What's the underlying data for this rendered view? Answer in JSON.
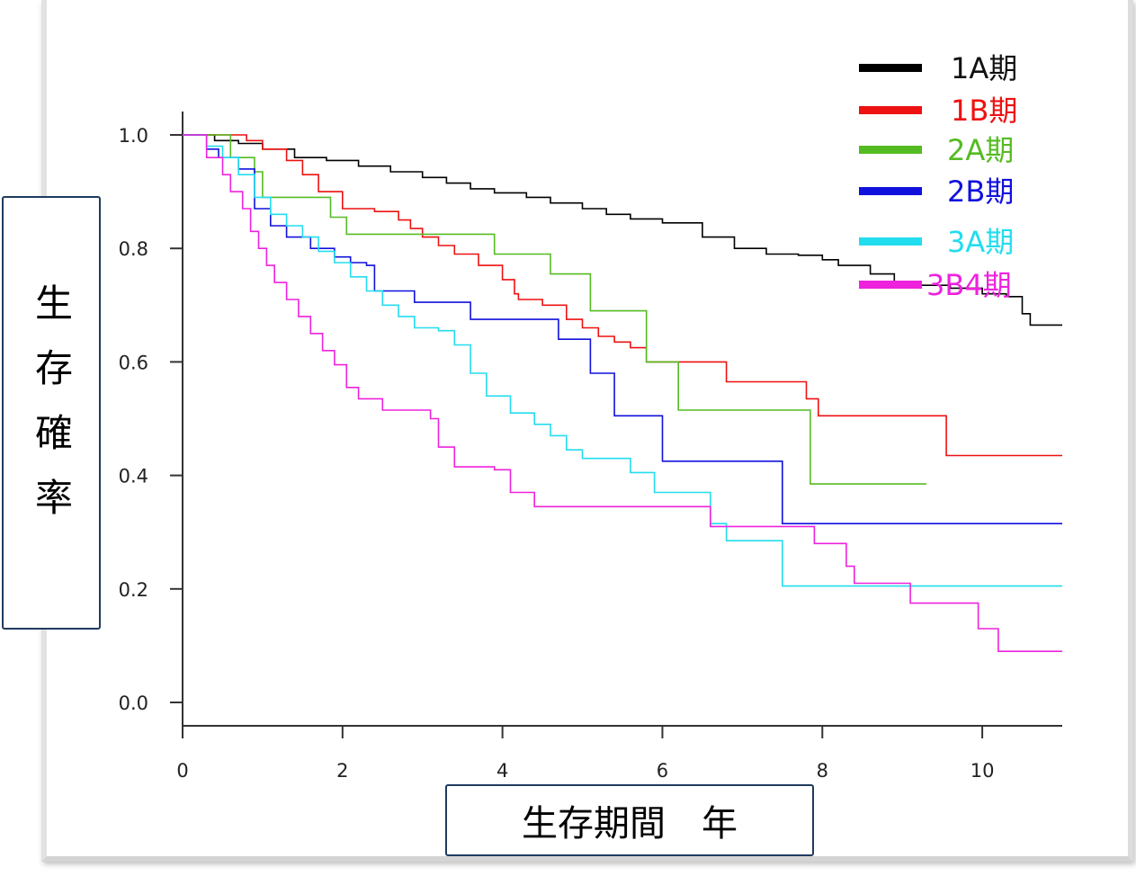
{
  "chart_data": {
    "type": "line",
    "subtype": "kaplan-meier step curves",
    "xlabel": "生存期間　年",
    "ylabel": "生存確率",
    "xlim": [
      0,
      11
    ],
    "ylim": [
      0,
      1.0
    ],
    "x_ticks": [
      "0",
      "2",
      "4",
      "6",
      "8",
      "10"
    ],
    "x_tick_values": [
      0,
      2,
      4,
      6,
      8,
      10
    ],
    "y_ticks": [
      "0.0",
      "0.2",
      "0.4",
      "0.6",
      "0.8",
      "1.0"
    ],
    "y_tick_values": [
      0,
      0.2,
      0.4,
      0.6,
      0.8,
      1.0
    ],
    "legend_position": "top-right",
    "series": [
      {
        "name": "1A期",
        "color": "#000000",
        "points": [
          [
            0,
            1.0
          ],
          [
            0.4,
            0.99
          ],
          [
            0.7,
            0.985
          ],
          [
            1.0,
            0.975
          ],
          [
            1.4,
            0.96
          ],
          [
            1.8,
            0.955
          ],
          [
            2.2,
            0.945
          ],
          [
            2.6,
            0.935
          ],
          [
            3.0,
            0.925
          ],
          [
            3.3,
            0.915
          ],
          [
            3.6,
            0.905
          ],
          [
            3.9,
            0.898
          ],
          [
            4.3,
            0.89
          ],
          [
            4.6,
            0.88
          ],
          [
            5.0,
            0.87
          ],
          [
            5.3,
            0.86
          ],
          [
            5.6,
            0.852
          ],
          [
            6.0,
            0.845
          ],
          [
            6.5,
            0.82
          ],
          [
            6.9,
            0.8
          ],
          [
            7.3,
            0.79
          ],
          [
            7.7,
            0.788
          ],
          [
            8.0,
            0.78
          ],
          [
            8.2,
            0.77
          ],
          [
            8.6,
            0.755
          ],
          [
            8.9,
            0.74
          ],
          [
            9.2,
            0.735
          ],
          [
            9.6,
            0.73
          ],
          [
            10.0,
            0.72
          ],
          [
            10.3,
            0.715
          ],
          [
            10.5,
            0.685
          ],
          [
            10.6,
            0.665
          ],
          [
            11.0,
            0.665
          ]
        ]
      },
      {
        "name": "1B期",
        "color": "#ee1111",
        "points": [
          [
            0,
            1.0
          ],
          [
            0.8,
            0.99
          ],
          [
            1.0,
            0.975
          ],
          [
            1.3,
            0.955
          ],
          [
            1.5,
            0.93
          ],
          [
            1.7,
            0.9
          ],
          [
            2.0,
            0.87
          ],
          [
            2.4,
            0.865
          ],
          [
            2.7,
            0.85
          ],
          [
            2.85,
            0.835
          ],
          [
            3.0,
            0.82
          ],
          [
            3.2,
            0.805
          ],
          [
            3.4,
            0.79
          ],
          [
            3.7,
            0.77
          ],
          [
            4.0,
            0.745
          ],
          [
            4.15,
            0.72
          ],
          [
            4.2,
            0.71
          ],
          [
            4.5,
            0.7
          ],
          [
            4.8,
            0.675
          ],
          [
            5.0,
            0.66
          ],
          [
            5.2,
            0.645
          ],
          [
            5.4,
            0.635
          ],
          [
            5.6,
            0.625
          ],
          [
            5.8,
            0.6
          ],
          [
            6.8,
            0.6
          ],
          [
            6.8,
            0.565
          ],
          [
            7.8,
            0.565
          ],
          [
            7.8,
            0.535
          ],
          [
            7.95,
            0.535
          ],
          [
            7.95,
            0.505
          ],
          [
            9.55,
            0.505
          ],
          [
            9.55,
            0.435
          ],
          [
            11.0,
            0.435
          ]
        ]
      },
      {
        "name": "2A期",
        "color": "#55bb22",
        "points": [
          [
            0,
            1.0
          ],
          [
            0.6,
            0.96
          ],
          [
            0.9,
            0.935
          ],
          [
            1.0,
            0.89
          ],
          [
            1.8,
            0.89
          ],
          [
            1.85,
            0.855
          ],
          [
            2.05,
            0.825
          ],
          [
            3.9,
            0.825
          ],
          [
            3.9,
            0.79
          ],
          [
            4.6,
            0.79
          ],
          [
            4.6,
            0.755
          ],
          [
            5.1,
            0.755
          ],
          [
            5.1,
            0.69
          ],
          [
            5.8,
            0.69
          ],
          [
            5.8,
            0.6
          ],
          [
            6.2,
            0.6
          ],
          [
            6.2,
            0.515
          ],
          [
            7.85,
            0.515
          ],
          [
            7.85,
            0.385
          ],
          [
            9.3,
            0.385
          ]
        ]
      },
      {
        "name": "2B期",
        "color": "#1111dd",
        "points": [
          [
            0,
            1.0
          ],
          [
            0.3,
            0.975
          ],
          [
            0.45,
            0.96
          ],
          [
            0.7,
            0.94
          ],
          [
            0.9,
            0.87
          ],
          [
            1.1,
            0.84
          ],
          [
            1.3,
            0.82
          ],
          [
            1.6,
            0.8
          ],
          [
            1.9,
            0.785
          ],
          [
            2.1,
            0.775
          ],
          [
            2.3,
            0.77
          ],
          [
            2.4,
            0.725
          ],
          [
            2.9,
            0.725
          ],
          [
            2.9,
            0.705
          ],
          [
            3.6,
            0.705
          ],
          [
            3.6,
            0.675
          ],
          [
            4.7,
            0.675
          ],
          [
            4.7,
            0.64
          ],
          [
            5.1,
            0.64
          ],
          [
            5.1,
            0.58
          ],
          [
            5.4,
            0.58
          ],
          [
            5.4,
            0.505
          ],
          [
            6.0,
            0.505
          ],
          [
            6.0,
            0.425
          ],
          [
            7.5,
            0.425
          ],
          [
            7.5,
            0.315
          ],
          [
            11.0,
            0.315
          ]
        ]
      },
      {
        "name": "3A期",
        "color": "#22ddee",
        "points": [
          [
            0,
            1.0
          ],
          [
            0.3,
            0.98
          ],
          [
            0.5,
            0.96
          ],
          [
            0.7,
            0.93
          ],
          [
            0.9,
            0.89
          ],
          [
            1.1,
            0.86
          ],
          [
            1.3,
            0.84
          ],
          [
            1.5,
            0.82
          ],
          [
            1.7,
            0.795
          ],
          [
            1.9,
            0.775
          ],
          [
            2.1,
            0.75
          ],
          [
            2.3,
            0.725
          ],
          [
            2.5,
            0.7
          ],
          [
            2.7,
            0.68
          ],
          [
            2.9,
            0.66
          ],
          [
            3.2,
            0.655
          ],
          [
            3.4,
            0.63
          ],
          [
            3.6,
            0.58
          ],
          [
            3.8,
            0.54
          ],
          [
            4.1,
            0.51
          ],
          [
            4.4,
            0.49
          ],
          [
            4.6,
            0.47
          ],
          [
            4.8,
            0.445
          ],
          [
            5.0,
            0.43
          ],
          [
            5.6,
            0.43
          ],
          [
            5.6,
            0.405
          ],
          [
            5.9,
            0.405
          ],
          [
            5.9,
            0.37
          ],
          [
            6.6,
            0.37
          ],
          [
            6.6,
            0.315
          ],
          [
            6.8,
            0.315
          ],
          [
            6.8,
            0.285
          ],
          [
            7.5,
            0.285
          ],
          [
            7.5,
            0.205
          ],
          [
            11.0,
            0.205
          ]
        ]
      },
      {
        "name": "3B4期",
        "color": "#ee22dd",
        "points": [
          [
            0,
            1.0
          ],
          [
            0.3,
            0.96
          ],
          [
            0.5,
            0.93
          ],
          [
            0.6,
            0.9
          ],
          [
            0.75,
            0.87
          ],
          [
            0.85,
            0.83
          ],
          [
            0.95,
            0.8
          ],
          [
            1.05,
            0.77
          ],
          [
            1.15,
            0.74
          ],
          [
            1.3,
            0.71
          ],
          [
            1.45,
            0.68
          ],
          [
            1.6,
            0.65
          ],
          [
            1.75,
            0.62
          ],
          [
            1.9,
            0.595
          ],
          [
            2.05,
            0.555
          ],
          [
            2.2,
            0.535
          ],
          [
            2.5,
            0.515
          ],
          [
            3.1,
            0.5
          ],
          [
            3.2,
            0.45
          ],
          [
            3.4,
            0.415
          ],
          [
            3.9,
            0.41
          ],
          [
            4.1,
            0.37
          ],
          [
            4.4,
            0.345
          ],
          [
            6.6,
            0.345
          ],
          [
            6.6,
            0.31
          ],
          [
            7.9,
            0.31
          ],
          [
            7.9,
            0.28
          ],
          [
            8.3,
            0.28
          ],
          [
            8.3,
            0.24
          ],
          [
            8.4,
            0.24
          ],
          [
            8.4,
            0.21
          ],
          [
            9.1,
            0.21
          ],
          [
            9.1,
            0.175
          ],
          [
            9.95,
            0.175
          ],
          [
            9.95,
            0.13
          ],
          [
            10.2,
            0.13
          ],
          [
            10.2,
            0.09
          ],
          [
            11.0,
            0.09
          ]
        ]
      }
    ]
  }
}
